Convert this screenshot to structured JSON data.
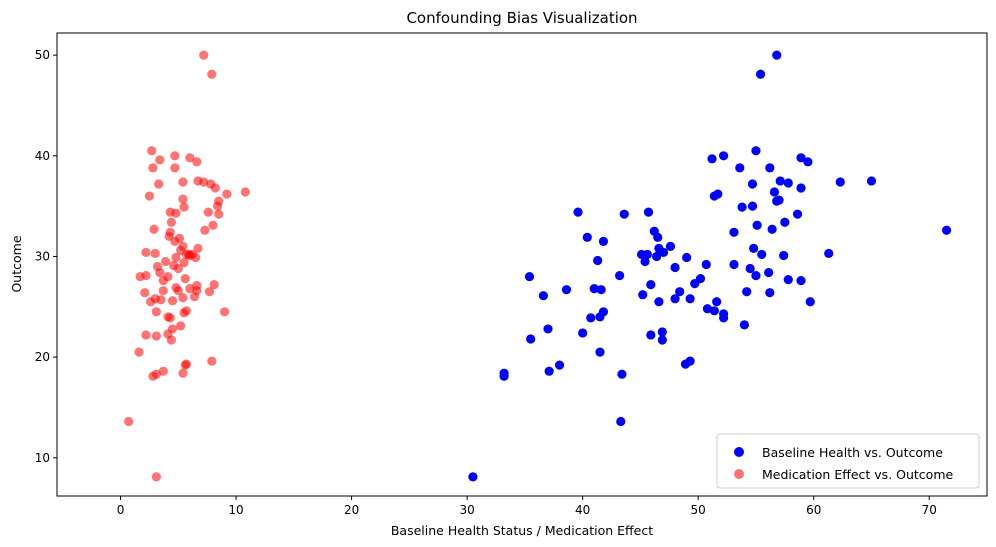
{
  "chart_data": {
    "type": "scatter",
    "title": "Confounding Bias Visualization",
    "xlabel": "Baseline Health Status / Medication Effect",
    "ylabel": "Outcome",
    "xlim": [
      -5.5,
      75
    ],
    "ylim": [
      6.2,
      52.2
    ],
    "xticks": [
      0,
      10,
      20,
      30,
      40,
      50,
      60,
      70
    ],
    "yticks": [
      10,
      20,
      30,
      40,
      50
    ],
    "grid": false,
    "legend_position": "lower-right",
    "series": [
      {
        "name": "Baseline Health vs. Outcome",
        "color": "#0000ff",
        "opacity": 1.0,
        "points": [
          [
            56.8,
            50.0
          ],
          [
            55.4,
            48.1
          ],
          [
            55.0,
            40.5
          ],
          [
            52.2,
            40.0
          ],
          [
            58.9,
            39.8
          ],
          [
            51.2,
            39.7
          ],
          [
            59.5,
            39.4
          ],
          [
            53.6,
            38.8
          ],
          [
            56.2,
            38.8
          ],
          [
            57.1,
            37.5
          ],
          [
            62.3,
            37.4
          ],
          [
            65.0,
            37.5
          ],
          [
            54.7,
            37.2
          ],
          [
            57.8,
            37.3
          ],
          [
            58.9,
            36.8
          ],
          [
            56.6,
            36.4
          ],
          [
            51.7,
            36.2
          ],
          [
            51.4,
            36.0
          ],
          [
            56.8,
            35.5
          ],
          [
            57.0,
            35.6
          ],
          [
            54.7,
            35.0
          ],
          [
            53.8,
            34.9
          ],
          [
            39.6,
            34.4
          ],
          [
            45.7,
            34.4
          ],
          [
            43.6,
            34.2
          ],
          [
            58.6,
            34.2
          ],
          [
            57.5,
            33.4
          ],
          [
            55.1,
            33.1
          ],
          [
            56.4,
            32.7
          ],
          [
            71.5,
            32.6
          ],
          [
            46.2,
            32.5
          ],
          [
            53.1,
            32.4
          ],
          [
            40.4,
            31.9
          ],
          [
            46.5,
            31.9
          ],
          [
            41.8,
            31.5
          ],
          [
            47.6,
            31.0
          ],
          [
            54.8,
            30.8
          ],
          [
            46.6,
            30.8
          ],
          [
            47.0,
            30.4
          ],
          [
            61.3,
            30.3
          ],
          [
            45.1,
            30.2
          ],
          [
            45.6,
            30.2
          ],
          [
            55.5,
            30.2
          ],
          [
            57.4,
            30.1
          ],
          [
            46.4,
            30.0
          ],
          [
            49.0,
            29.9
          ],
          [
            45.4,
            29.5
          ],
          [
            41.3,
            29.6
          ],
          [
            50.7,
            29.2
          ],
          [
            53.1,
            29.2
          ],
          [
            48.0,
            28.9
          ],
          [
            54.5,
            28.8
          ],
          [
            35.4,
            28.0
          ],
          [
            55.0,
            28.1
          ],
          [
            56.1,
            28.4
          ],
          [
            43.2,
            28.1
          ],
          [
            50.2,
            27.8
          ],
          [
            57.8,
            27.7
          ],
          [
            58.9,
            27.6
          ],
          [
            49.7,
            27.3
          ],
          [
            45.9,
            27.2
          ],
          [
            41.0,
            26.8
          ],
          [
            41.6,
            26.7
          ],
          [
            38.6,
            26.7
          ],
          [
            54.2,
            26.5
          ],
          [
            48.4,
            26.5
          ],
          [
            56.2,
            26.4
          ],
          [
            45.2,
            26.2
          ],
          [
            36.6,
            26.1
          ],
          [
            48.0,
            25.8
          ],
          [
            49.3,
            25.8
          ],
          [
            46.6,
            25.5
          ],
          [
            51.6,
            25.5
          ],
          [
            59.7,
            25.5
          ],
          [
            50.8,
            24.8
          ],
          [
            51.4,
            24.6
          ],
          [
            41.8,
            24.5
          ],
          [
            52.2,
            24.3
          ],
          [
            40.7,
            23.9
          ],
          [
            41.5,
            24.0
          ],
          [
            52.2,
            23.9
          ],
          [
            54.0,
            23.2
          ],
          [
            37.0,
            22.8
          ],
          [
            46.9,
            22.5
          ],
          [
            45.9,
            22.2
          ],
          [
            40.0,
            22.4
          ],
          [
            35.5,
            21.8
          ],
          [
            46.9,
            21.7
          ],
          [
            41.5,
            20.5
          ],
          [
            49.3,
            19.6
          ],
          [
            38.0,
            19.2
          ],
          [
            48.9,
            19.3
          ],
          [
            37.1,
            18.6
          ],
          [
            33.2,
            18.4
          ],
          [
            43.4,
            18.3
          ],
          [
            33.2,
            18.1
          ],
          [
            43.3,
            13.6
          ],
          [
            30.5,
            8.1
          ]
        ]
      },
      {
        "name": "Medication Effect vs. Outcome",
        "color": "#ff0000",
        "opacity": 0.55,
        "points": [
          [
            7.2,
            50.0
          ],
          [
            7.9,
            48.1
          ],
          [
            2.7,
            40.5
          ],
          [
            4.7,
            40.0
          ],
          [
            3.4,
            39.6
          ],
          [
            6.0,
            39.8
          ],
          [
            6.6,
            39.4
          ],
          [
            2.8,
            38.8
          ],
          [
            4.7,
            38.8
          ],
          [
            6.7,
            37.5
          ],
          [
            7.2,
            37.4
          ],
          [
            5.4,
            37.4
          ],
          [
            3.3,
            37.2
          ],
          [
            7.8,
            37.2
          ],
          [
            8.2,
            36.8
          ],
          [
            9.2,
            36.2
          ],
          [
            10.8,
            36.4
          ],
          [
            2.5,
            36.0
          ],
          [
            5.4,
            35.7
          ],
          [
            8.5,
            35.5
          ],
          [
            8.4,
            35.0
          ],
          [
            5.5,
            34.9
          ],
          [
            4.3,
            34.4
          ],
          [
            4.8,
            34.3
          ],
          [
            7.6,
            34.4
          ],
          [
            8.5,
            34.2
          ],
          [
            4.4,
            33.4
          ],
          [
            8.0,
            33.1
          ],
          [
            7.3,
            32.6
          ],
          [
            4.3,
            32.4
          ],
          [
            2.9,
            32.7
          ],
          [
            4.2,
            32.0
          ],
          [
            5.1,
            31.8
          ],
          [
            4.7,
            31.5
          ],
          [
            5.4,
            31.0
          ],
          [
            6.7,
            30.8
          ],
          [
            5.2,
            30.6
          ],
          [
            2.2,
            30.4
          ],
          [
            3.0,
            30.3
          ],
          [
            5.7,
            30.2
          ],
          [
            6.0,
            30.1
          ],
          [
            5.9,
            30.2
          ],
          [
            6.2,
            30.2
          ],
          [
            4.8,
            29.9
          ],
          [
            6.5,
            29.9
          ],
          [
            3.9,
            29.5
          ],
          [
            5.5,
            29.4
          ],
          [
            4.6,
            29.1
          ],
          [
            3.2,
            29.0
          ],
          [
            5.0,
            28.8
          ],
          [
            3.4,
            28.4
          ],
          [
            2.2,
            28.1
          ],
          [
            1.7,
            28.0
          ],
          [
            5.6,
            27.8
          ],
          [
            4.1,
            28.0
          ],
          [
            3.7,
            27.6
          ],
          [
            8.1,
            27.2
          ],
          [
            6.6,
            27.1
          ],
          [
            6.0,
            26.8
          ],
          [
            5.0,
            26.6
          ],
          [
            4.8,
            26.9
          ],
          [
            7.7,
            26.5
          ],
          [
            6.6,
            26.6
          ],
          [
            2.1,
            26.4
          ],
          [
            3.7,
            26.6
          ],
          [
            6.4,
            26.0
          ],
          [
            5.4,
            25.9
          ],
          [
            3.0,
            25.8
          ],
          [
            4.5,
            25.6
          ],
          [
            3.5,
            25.7
          ],
          [
            5.7,
            24.6
          ],
          [
            9.0,
            24.5
          ],
          [
            2.6,
            25.5
          ],
          [
            3.1,
            24.5
          ],
          [
            5.5,
            24.4
          ],
          [
            4.1,
            24.0
          ],
          [
            4.3,
            23.9
          ],
          [
            5.2,
            23.1
          ],
          [
            4.5,
            22.8
          ],
          [
            3.1,
            22.1
          ],
          [
            2.2,
            22.2
          ],
          [
            4.1,
            22.3
          ],
          [
            4.4,
            21.7
          ],
          [
            1.6,
            20.5
          ],
          [
            5.6,
            19.2
          ],
          [
            5.7,
            19.3
          ],
          [
            7.9,
            19.6
          ],
          [
            3.7,
            18.6
          ],
          [
            3.1,
            18.3
          ],
          [
            5.4,
            18.4
          ],
          [
            2.8,
            18.1
          ],
          [
            0.7,
            13.6
          ],
          [
            3.1,
            8.1
          ]
        ]
      }
    ]
  }
}
